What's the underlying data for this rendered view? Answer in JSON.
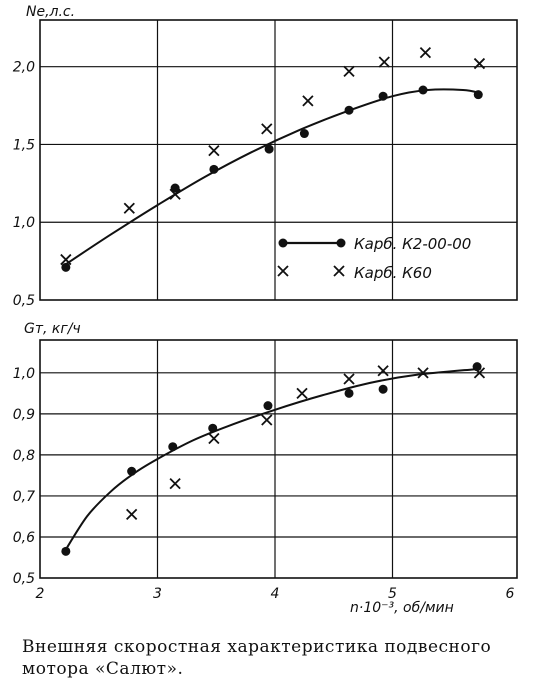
{
  "caption": "Внешняя скоростная характеристика подвесного мотора «Салют».",
  "colors": {
    "ink": "#111111",
    "grid": "#222222"
  },
  "chart_data": [
    {
      "type": "scatter",
      "ylabel": "Ne,л.с.",
      "xlim": [
        2,
        6
      ],
      "ylim": [
        0.5,
        2.3
      ],
      "yticks": [
        0.5,
        1.0,
        1.5,
        2.0
      ],
      "ytick_labels": [
        "0,5",
        "1,0",
        "1,5",
        "2,0"
      ],
      "grid": true,
      "legend_position": "lower-right",
      "series": [
        {
          "name": "Карб. К2-00-00",
          "marker": "dot",
          "x": [
            2.22,
            3.15,
            3.48,
            3.95,
            4.25,
            4.63,
            4.92,
            5.26,
            5.73
          ],
          "y": [
            0.71,
            1.22,
            1.34,
            1.47,
            1.57,
            1.72,
            1.81,
            1.85,
            1.82
          ]
        },
        {
          "name": "Карб. К60",
          "marker": "cross",
          "x": [
            2.22,
            2.76,
            3.15,
            3.48,
            3.93,
            4.28,
            4.63,
            4.93,
            5.28,
            5.74
          ],
          "y": [
            0.76,
            1.09,
            1.18,
            1.46,
            1.6,
            1.78,
            1.97,
            2.03,
            2.09,
            2.02
          ]
        }
      ],
      "fit_curve": {
        "x": [
          2.2,
          2.6,
          3.0,
          3.4,
          3.8,
          4.2,
          4.6,
          5.0,
          5.3,
          5.6,
          5.75
        ],
        "y": [
          0.72,
          0.92,
          1.11,
          1.29,
          1.45,
          1.59,
          1.71,
          1.81,
          1.85,
          1.85,
          1.83
        ]
      }
    },
    {
      "type": "scatter",
      "ylabel": "Gт, кг/ч",
      "xlabel": "n·10⁻³, об/мин",
      "xlim": [
        2,
        6
      ],
      "ylim": [
        0.5,
        1.08
      ],
      "xticks": [
        2,
        3,
        4,
        5,
        6
      ],
      "xtick_labels": [
        "2",
        "3",
        "4",
        "5",
        "6"
      ],
      "yticks": [
        0.5,
        0.6,
        0.7,
        0.8,
        0.9,
        1.0
      ],
      "ytick_labels": [
        "0,5",
        "0,6",
        "0,7",
        "0,8",
        "0,9",
        "1,0"
      ],
      "grid": true,
      "series": [
        {
          "name": "Карб. К2-00-00",
          "marker": "dot",
          "x": [
            2.22,
            2.78,
            3.13,
            3.47,
            3.94,
            4.63,
            4.92,
            5.72
          ],
          "y": [
            0.565,
            0.76,
            0.82,
            0.865,
            0.92,
            0.95,
            0.96,
            1.015
          ]
        },
        {
          "name": "Карб. К60",
          "marker": "cross",
          "x": [
            2.78,
            3.15,
            3.48,
            3.93,
            4.23,
            4.63,
            4.92,
            5.26,
            5.74
          ],
          "y": [
            0.655,
            0.73,
            0.84,
            0.885,
            0.95,
            0.985,
            1.005,
            1.0,
            1.0
          ]
        }
      ],
      "fit_curve": {
        "x": [
          2.2,
          2.4,
          2.6,
          2.8,
          3.0,
          3.3,
          3.6,
          4.0,
          4.4,
          4.8,
          5.2,
          5.75
        ],
        "y": [
          0.56,
          0.65,
          0.71,
          0.755,
          0.79,
          0.835,
          0.87,
          0.91,
          0.945,
          0.975,
          0.995,
          1.01
        ]
      }
    }
  ]
}
